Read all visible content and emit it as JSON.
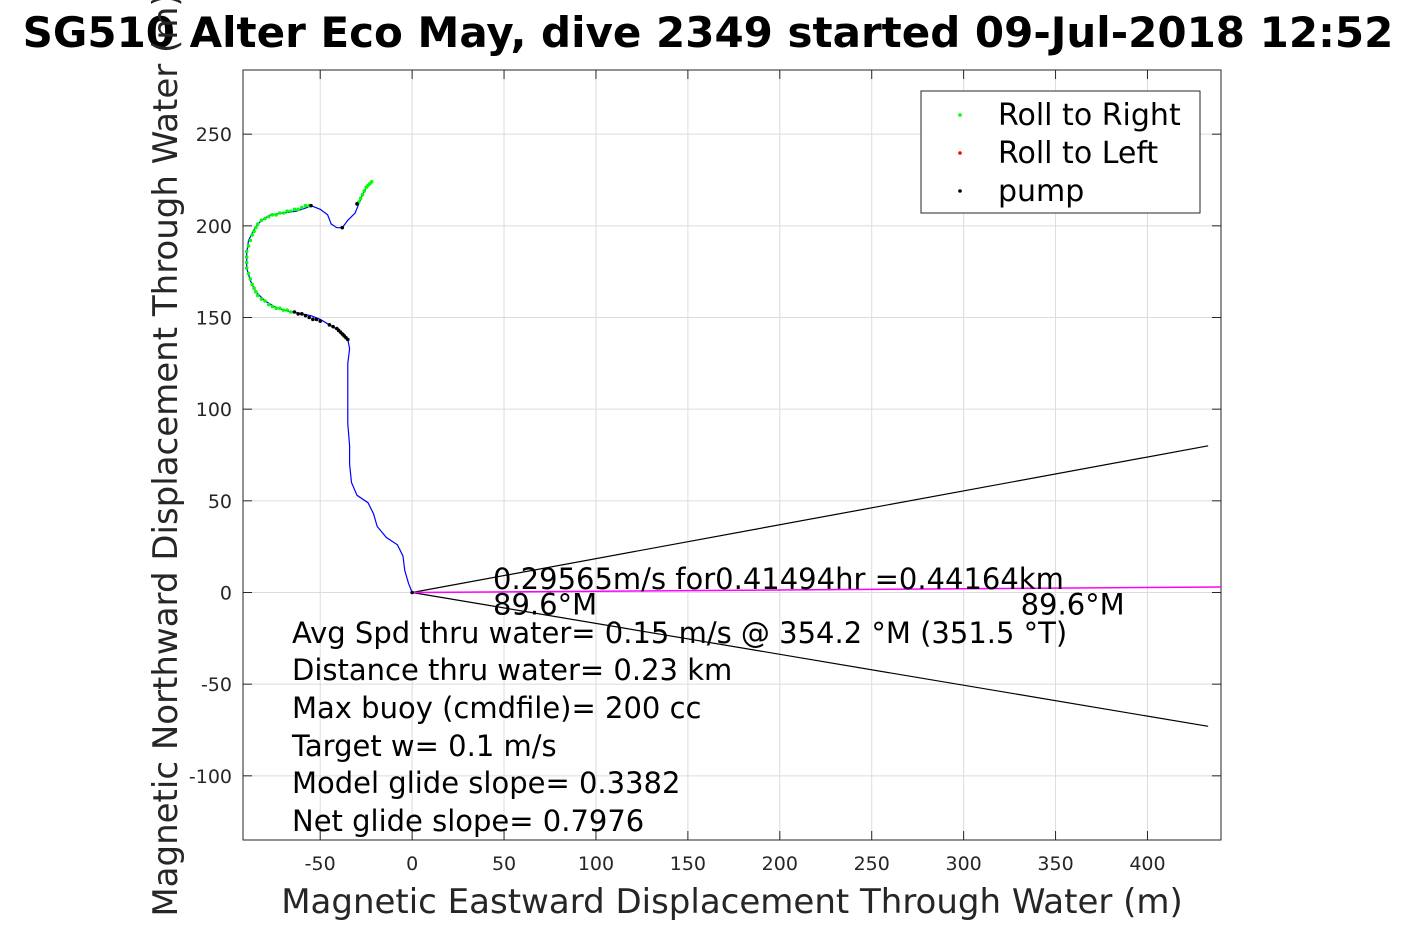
{
  "chart_data": {
    "type": "line",
    "title": "SG510 Alter Eco May, dive 2349 started 09-Jul-2018 12:52",
    "xlabel": "Magnetic Eastward Displacement Through Water (m)",
    "ylabel": "Magnetic Northward Displacement Through Water (m)",
    "xlim": [
      -92,
      440
    ],
    "ylim": [
      -135,
      285
    ],
    "xticks": [
      -50,
      0,
      50,
      100,
      150,
      200,
      250,
      300,
      350,
      400
    ],
    "yticks": [
      -100,
      -50,
      0,
      50,
      100,
      150,
      200,
      250
    ],
    "grid": true,
    "legend_position": "top-right",
    "legend": [
      {
        "label": "Roll to Right",
        "color": "#00ff00"
      },
      {
        "label": "Roll to Left",
        "color": "#ff0000"
      },
      {
        "label": "pump",
        "color": "#000000"
      }
    ],
    "track": {
      "color": "#0000ff",
      "points": [
        [
          0,
          0
        ],
        [
          -2,
          5
        ],
        [
          -4,
          12
        ],
        [
          -5,
          20
        ],
        [
          -8,
          26
        ],
        [
          -14,
          30
        ],
        [
          -19,
          36
        ],
        [
          -21,
          43
        ],
        [
          -24,
          49
        ],
        [
          -30,
          53
        ],
        [
          -33,
          60
        ],
        [
          -34,
          70
        ],
        [
          -34,
          80
        ],
        [
          -35,
          92
        ],
        [
          -35,
          105
        ],
        [
          -35,
          115
        ],
        [
          -35,
          125
        ],
        [
          -34,
          133
        ],
        [
          -35,
          138
        ],
        [
          -37,
          141
        ],
        [
          -40,
          143
        ],
        [
          -45,
          146
        ],
        [
          -50,
          149
        ],
        [
          -55,
          151
        ],
        [
          -60,
          152
        ],
        [
          -65,
          153
        ],
        [
          -70,
          154
        ],
        [
          -75,
          156
        ],
        [
          -80,
          159
        ],
        [
          -85,
          164
        ],
        [
          -88,
          170
        ],
        [
          -90,
          177
        ],
        [
          -90,
          185
        ],
        [
          -89,
          192
        ],
        [
          -86,
          198
        ],
        [
          -82,
          203
        ],
        [
          -77,
          206
        ],
        [
          -70,
          207
        ],
        [
          -63,
          208
        ],
        [
          -57,
          210
        ],
        [
          -55,
          211
        ],
        [
          -50,
          209
        ],
        [
          -46,
          206
        ],
        [
          -44,
          201
        ],
        [
          -41,
          199
        ],
        [
          -38,
          199
        ],
        [
          -35,
          203
        ],
        [
          -31,
          207
        ],
        [
          -29,
          212
        ],
        [
          -27,
          217
        ],
        [
          -25,
          221
        ],
        [
          -22,
          224
        ]
      ]
    },
    "roll_right_points": [
      [
        -22,
        224
      ],
      [
        -23,
        223
      ],
      [
        -24,
        222
      ],
      [
        -25,
        221
      ],
      [
        -26,
        219
      ],
      [
        -27,
        217
      ],
      [
        -28,
        215
      ],
      [
        -29,
        213
      ],
      [
        -56,
        211
      ],
      [
        -58,
        211
      ],
      [
        -60,
        210
      ],
      [
        -62,
        209
      ],
      [
        -64,
        209
      ],
      [
        -66,
        208
      ],
      [
        -68,
        208
      ],
      [
        -70,
        207
      ],
      [
        -72,
        207
      ],
      [
        -74,
        206
      ],
      [
        -76,
        206
      ],
      [
        -78,
        205
      ],
      [
        -80,
        204
      ],
      [
        -82,
        203
      ],
      [
        -84,
        201
      ],
      [
        -85,
        199
      ],
      [
        -86,
        197
      ],
      [
        -87,
        195
      ],
      [
        -88,
        192
      ],
      [
        -89,
        189
      ],
      [
        -90,
        186
      ],
      [
        -90,
        183
      ],
      [
        -90,
        180
      ],
      [
        -90,
        177
      ],
      [
        -89,
        174
      ],
      [
        -88,
        171
      ],
      [
        -87,
        168
      ],
      [
        -86,
        166
      ],
      [
        -85,
        164
      ],
      [
        -84,
        162
      ],
      [
        -82,
        160
      ],
      [
        -80,
        159
      ],
      [
        -78,
        157
      ],
      [
        -76,
        156
      ],
      [
        -74,
        155
      ],
      [
        -72,
        155
      ],
      [
        -70,
        154
      ],
      [
        -68,
        154
      ],
      [
        -66,
        153
      ]
    ],
    "roll_left_points": [],
    "pump_points": [
      [
        -30,
        212
      ],
      [
        -38,
        199
      ],
      [
        -55,
        211
      ],
      [
        -64,
        153
      ],
      [
        -62,
        152
      ],
      [
        -60,
        152
      ],
      [
        -58,
        151
      ],
      [
        -56,
        150
      ],
      [
        -54,
        149
      ],
      [
        -52,
        149
      ],
      [
        -50,
        148
      ],
      [
        -45,
        146
      ],
      [
        -43,
        145
      ],
      [
        -41,
        144
      ],
      [
        -40,
        143
      ],
      [
        -39,
        142
      ],
      [
        -38,
        141
      ],
      [
        -37,
        140
      ],
      [
        -36,
        139
      ],
      [
        -35,
        138
      ],
      [
        0,
        0
      ]
    ],
    "heading_line": {
      "color": "#ff00ff",
      "from": [
        0,
        0
      ],
      "to": [
        440,
        3
      ]
    },
    "cone_lines": [
      {
        "from": [
          0,
          0
        ],
        "to": [
          433,
          80
        ]
      },
      {
        "from": [
          0,
          0
        ],
        "to": [
          433,
          -73
        ]
      }
    ],
    "annotations": {
      "speed": {
        "text": "0.29565m/s for0.41494hr =0.44164km",
        "at": [
          44,
          2
        ]
      },
      "heading_left": {
        "text": "89.6°M",
        "at": [
          44,
          -12
        ]
      },
      "heading_right": {
        "text": "89.6°M",
        "at": [
          331,
          -12
        ]
      }
    },
    "stats": [
      "Avg Spd thru water=  0.15 m/s @ 354.2 °M (351.5 °T)",
      "Distance thru water=  0.23 km",
      "Max buoy (cmdfile)= 200 cc",
      "Target w= 0.1 m/s",
      "Model glide slope= 0.3382",
      "Net glide slope= 0.7976"
    ]
  }
}
